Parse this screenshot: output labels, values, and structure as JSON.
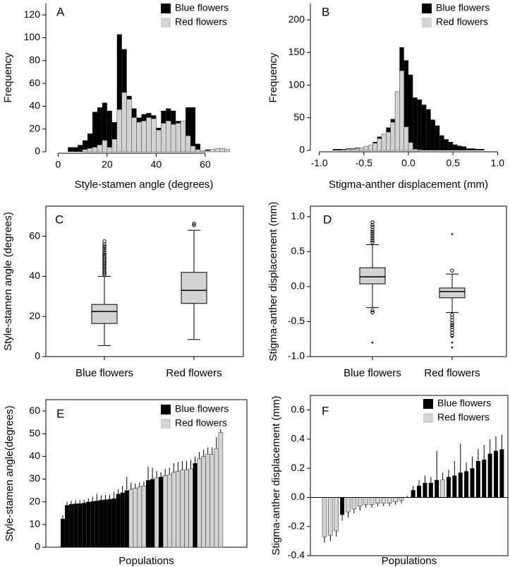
{
  "colors": {
    "blue_flowers": "#000000",
    "red_flowers": "#d3d3d3",
    "axis": "#000000"
  },
  "chart_data": [
    {
      "panel": "A",
      "type": "bar",
      "title": "",
      "xlabel": "Style-stamen angle (degrees)",
      "ylabel": "Frequency",
      "xlim": [
        -5,
        75
      ],
      "ylim": [
        0,
        130
      ],
      "xticks": [
        0,
        20,
        40,
        60
      ],
      "yticks": [
        0,
        20,
        40,
        60,
        80,
        100,
        120
      ],
      "legend": [
        "Blue flowers",
        "Red flowers"
      ],
      "legend_position": "top-right",
      "bin_edges": [
        4,
        6,
        8,
        10,
        12,
        14,
        16,
        18,
        20,
        22,
        24,
        26,
        28,
        30,
        32,
        34,
        36,
        38,
        40,
        42,
        44,
        46,
        48,
        50,
        52,
        54,
        56,
        58,
        60,
        62,
        64,
        66,
        68,
        70
      ],
      "series": [
        {
          "name": "Blue flowers",
          "values": [
            4,
            4,
            6,
            10,
            16,
            35,
            39,
            43,
            36,
            26,
            103,
            90,
            49,
            38,
            30,
            33,
            34,
            32,
            21,
            36,
            38,
            36,
            27,
            27,
            39,
            39,
            7,
            1,
            2,
            2,
            3,
            3,
            0
          ]
        },
        {
          "name": "Red flowers",
          "values": [
            0,
            0,
            0,
            2,
            3,
            4,
            6,
            10,
            4,
            11,
            37,
            52,
            46,
            30,
            26,
            27,
            30,
            29,
            19,
            25,
            27,
            24,
            25,
            27,
            14,
            5,
            2,
            1,
            1,
            2,
            3,
            3,
            2
          ]
        }
      ]
    },
    {
      "panel": "B",
      "type": "bar",
      "title": "",
      "xlabel": "Stigma-anther displacement (mm)",
      "ylabel": "Frequency",
      "xlim": [
        -1.1,
        1.1
      ],
      "ylim": [
        0,
        225
      ],
      "xticks": [
        -1.0,
        -0.5,
        0.0,
        0.5,
        1.0
      ],
      "yticks": [
        0,
        50,
        100,
        150,
        200
      ],
      "legend": [
        "Blue flowers",
        "Red flowers"
      ],
      "legend_position": "top-right",
      "bin_edges": [
        -0.85,
        -0.8,
        -0.75,
        -0.7,
        -0.65,
        -0.6,
        -0.55,
        -0.5,
        -0.45,
        -0.4,
        -0.35,
        -0.3,
        -0.25,
        -0.2,
        -0.15,
        -0.1,
        -0.05,
        0,
        0.05,
        0.1,
        0.15,
        0.2,
        0.25,
        0.3,
        0.35,
        0.4,
        0.45,
        0.5,
        0.55,
        0.6,
        0.65,
        0.7,
        0.75,
        0.8,
        0.85
      ],
      "series": [
        {
          "name": "Blue flowers",
          "values": [
            2,
            2,
            2,
            3,
            3,
            4,
            4,
            5,
            8,
            13,
            21,
            25,
            35,
            48,
            78,
            158,
            138,
            116,
            81,
            78,
            70,
            63,
            47,
            38,
            23,
            17,
            13,
            9,
            7,
            6,
            3,
            3,
            2,
            2
          ]
        },
        {
          "name": "Red flowers",
          "values": [
            0,
            0,
            1,
            2,
            2,
            3,
            4,
            6,
            8,
            11,
            18,
            25,
            28,
            43,
            90,
            122,
            36,
            12,
            2,
            1,
            0,
            0,
            0,
            0,
            0,
            0,
            0,
            0,
            0,
            0,
            0,
            0,
            0,
            0
          ]
        }
      ]
    },
    {
      "panel": "C",
      "type": "boxplot",
      "categories": [
        "Blue flowers",
        "Red flowers"
      ],
      "ylabel": "Style-stamen angle (degrees)",
      "ylim": [
        0,
        75
      ],
      "yticks": [
        0,
        20,
        40,
        60
      ],
      "boxes": [
        {
          "whisker_low": 5.5,
          "q1": 16.5,
          "median": 22.5,
          "q3": 26,
          "whisker_high": 40,
          "outliers": [
            40.8,
            41.5,
            42.2,
            43,
            43.7,
            44.4,
            45.1,
            45.9,
            46.6,
            47.3,
            48,
            48.8,
            49.5,
            50.2,
            51,
            52,
            53,
            54,
            55,
            56,
            57.5
          ]
        },
        {
          "whisker_low": 8.5,
          "q1": 26.5,
          "median": 33,
          "q3": 42,
          "whisker_high": 63,
          "outliers": [
            65.5,
            66.3
          ]
        }
      ]
    },
    {
      "panel": "D",
      "type": "boxplot",
      "categories": [
        "Blue flowers",
        "Red flowers"
      ],
      "ylabel": "Stigma-anther displacement (mm)",
      "ylim": [
        -1.0,
        1.15
      ],
      "yticks": [
        -1.0,
        -0.5,
        0.0,
        0.5,
        1.0
      ],
      "boxes": [
        {
          "whisker_low": -0.3,
          "q1": 0.04,
          "median": 0.14,
          "q3": 0.27,
          "whisker_high": 0.6,
          "outliers": [
            0.63,
            0.66,
            0.69,
            0.72,
            0.75,
            0.78,
            0.81,
            0.85,
            0.88,
            0.92,
            -0.34,
            -0.37
          ],
          "extremes": [
            -0.8
          ]
        },
        {
          "whisker_low": -0.37,
          "q1": -0.16,
          "median": -0.07,
          "q3": -0.02,
          "whisker_high": 0.18,
          "outliers": [
            0.23,
            -0.4,
            -0.44,
            -0.48,
            -0.52,
            -0.55,
            -0.58,
            -0.62,
            -0.66,
            -0.7
          ],
          "extremes": [
            0.75,
            -0.72,
            -0.8,
            -0.87
          ]
        }
      ]
    },
    {
      "panel": "E",
      "type": "bar",
      "xlabel": "Populations",
      "ylabel": "Style-stamen angle(degrees)",
      "ylim": [
        0,
        65
      ],
      "yticks": [
        0,
        10,
        20,
        30,
        40,
        50,
        60
      ],
      "legend": [
        "Blue flowers",
        "Red flowers"
      ],
      "legend_position": "top-right",
      "bars": [
        {
          "value": 12.5,
          "err": 1.5,
          "group": "Blue flowers"
        },
        {
          "value": 18.5,
          "err": 1.5,
          "group": "Blue flowers"
        },
        {
          "value": 19,
          "err": 1.5,
          "group": "Blue flowers"
        },
        {
          "value": 19.2,
          "err": 1.5,
          "group": "Blue flowers"
        },
        {
          "value": 19.3,
          "err": 1.5,
          "group": "Blue flowers"
        },
        {
          "value": 19.5,
          "err": 1.5,
          "group": "Blue flowers"
        },
        {
          "value": 20,
          "err": 1.5,
          "group": "Blue flowers"
        },
        {
          "value": 20.2,
          "err": 2,
          "group": "Blue flowers"
        },
        {
          "value": 20.5,
          "err": 3,
          "group": "Blue flowers"
        },
        {
          "value": 20.8,
          "err": 2,
          "group": "Blue flowers"
        },
        {
          "value": 21,
          "err": 2,
          "group": "Blue flowers"
        },
        {
          "value": 21.2,
          "err": 2,
          "group": "Blue flowers"
        },
        {
          "value": 21.5,
          "err": 3,
          "group": "Blue flowers"
        },
        {
          "value": 23.5,
          "err": 2,
          "group": "Blue flowers"
        },
        {
          "value": 24,
          "err": 3,
          "group": "Blue flowers"
        },
        {
          "value": 25,
          "err": 6,
          "group": "Blue flowers"
        },
        {
          "value": 25.5,
          "err": 3,
          "group": "Red flowers"
        },
        {
          "value": 26,
          "err": 2,
          "group": "Red flowers"
        },
        {
          "value": 26.5,
          "err": 2,
          "group": "Red flowers"
        },
        {
          "value": 27,
          "err": 2,
          "group": "Red flowers"
        },
        {
          "value": 29.5,
          "err": 6,
          "group": "Blue flowers"
        },
        {
          "value": 30,
          "err": 5,
          "group": "Blue flowers"
        },
        {
          "value": 30.5,
          "err": 3,
          "group": "Red flowers"
        },
        {
          "value": 31,
          "err": 2,
          "group": "Blue flowers"
        },
        {
          "value": 31.5,
          "err": 3,
          "group": "Red flowers"
        },
        {
          "value": 32,
          "err": 3,
          "group": "Red flowers"
        },
        {
          "value": 33,
          "err": 4,
          "group": "Red flowers"
        },
        {
          "value": 33.5,
          "err": 4,
          "group": "Red flowers"
        },
        {
          "value": 34,
          "err": 4,
          "group": "Red flowers"
        },
        {
          "value": 34,
          "err": 4,
          "group": "Red flowers"
        },
        {
          "value": 34.5,
          "err": 4,
          "group": "Red flowers"
        },
        {
          "value": 37,
          "err": 3,
          "group": "Blue flowers"
        },
        {
          "value": 39,
          "err": 3,
          "group": "Red flowers"
        },
        {
          "value": 40,
          "err": 3,
          "group": "Red flowers"
        },
        {
          "value": 41,
          "err": 3,
          "group": "Red flowers"
        },
        {
          "value": 41,
          "err": 3,
          "group": "Red flowers"
        },
        {
          "value": 43.5,
          "err": 5,
          "group": "Red flowers"
        },
        {
          "value": 50.5,
          "err": 1.5,
          "group": "Red flowers"
        }
      ]
    },
    {
      "panel": "F",
      "type": "bar",
      "xlabel": "Populations",
      "ylabel": "Stigma-anther displacement (mm)",
      "ylim": [
        -0.4,
        0.7
      ],
      "yticks": [
        -0.4,
        -0.2,
        0.0,
        0.2,
        0.4,
        0.6
      ],
      "legend": [
        "Blue flowers",
        "Red flowers"
      ],
      "legend_position": "top-right",
      "bars": [
        {
          "value": -0.27,
          "err": 0.04,
          "group": "Red flowers"
        },
        {
          "value": -0.26,
          "err": 0.04,
          "group": "Red flowers"
        },
        {
          "value": -0.23,
          "err": 0.04,
          "group": "Red flowers"
        },
        {
          "value": -0.12,
          "err": 0.04,
          "group": "Blue flowers"
        },
        {
          "value": -0.1,
          "err": 0.04,
          "group": "Red flowers"
        },
        {
          "value": -0.08,
          "err": 0.03,
          "group": "Red flowers"
        },
        {
          "value": -0.06,
          "err": 0.03,
          "group": "Red flowers"
        },
        {
          "value": -0.05,
          "err": 0.02,
          "group": "Red flowers"
        },
        {
          "value": -0.05,
          "err": 0.02,
          "group": "Red flowers"
        },
        {
          "value": -0.04,
          "err": 0.02,
          "group": "Red flowers"
        },
        {
          "value": -0.04,
          "err": 0.02,
          "group": "Red flowers"
        },
        {
          "value": -0.04,
          "err": 0.02,
          "group": "Red flowers"
        },
        {
          "value": -0.03,
          "err": 0.02,
          "group": "Red flowers"
        },
        {
          "value": -0.02,
          "err": 0.02,
          "group": "Red flowers"
        },
        {
          "value": 0.0,
          "err": 0.01,
          "group": "Red flowers"
        },
        {
          "value": 0.05,
          "err": 0.03,
          "group": "Blue flowers"
        },
        {
          "value": 0.08,
          "err": 0.04,
          "group": "Blue flowers"
        },
        {
          "value": 0.1,
          "err": 0.05,
          "group": "Blue flowers"
        },
        {
          "value": 0.1,
          "err": 0.04,
          "group": "Blue flowers"
        },
        {
          "value": 0.12,
          "err": 0.2,
          "group": "Blue flowers"
        },
        {
          "value": 0.12,
          "err": 0.05,
          "group": "Red flowers"
        },
        {
          "value": 0.14,
          "err": 0.05,
          "group": "Blue flowers"
        },
        {
          "value": 0.15,
          "err": 0.1,
          "group": "Blue flowers"
        },
        {
          "value": 0.17,
          "err": 0.2,
          "group": "Blue flowers"
        },
        {
          "value": 0.18,
          "err": 0.06,
          "group": "Blue flowers"
        },
        {
          "value": 0.2,
          "err": 0.08,
          "group": "Blue flowers"
        },
        {
          "value": 0.25,
          "err": 0.08,
          "group": "Blue flowers"
        },
        {
          "value": 0.26,
          "err": 0.1,
          "group": "Blue flowers"
        },
        {
          "value": 0.3,
          "err": 0.1,
          "group": "Blue flowers"
        },
        {
          "value": 0.32,
          "err": 0.1,
          "group": "Blue flowers"
        },
        {
          "value": 0.33,
          "err": 0.1,
          "group": "Blue flowers"
        }
      ]
    }
  ]
}
